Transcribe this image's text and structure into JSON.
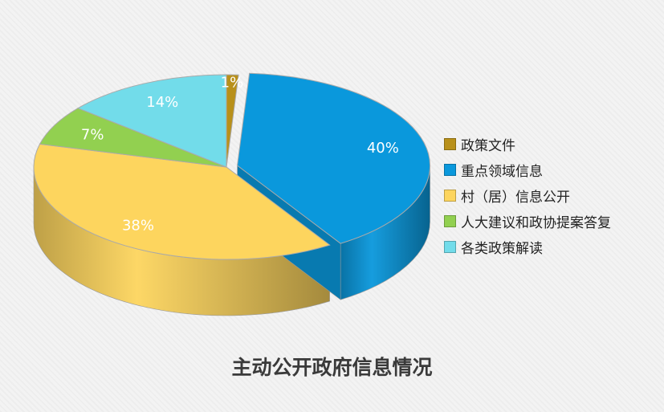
{
  "chart_data": {
    "type": "pie",
    "title": "主动公开政府信息情况",
    "categories": [
      "政策文件",
      "重点领域信息",
      "村（居）信息公开",
      "人大建议和政协提案答复",
      "各类政策解读"
    ],
    "values": [
      1,
      40,
      38,
      7,
      14
    ],
    "data_labels": [
      "1%",
      "40%",
      "38%",
      "7%",
      "14%"
    ],
    "colors": [
      "#b8901a",
      "#0a98dc",
      "#fdd55e",
      "#92d050",
      "#72dcea"
    ],
    "legend_placement": "right",
    "exploded_slice": "重点领域信息"
  }
}
